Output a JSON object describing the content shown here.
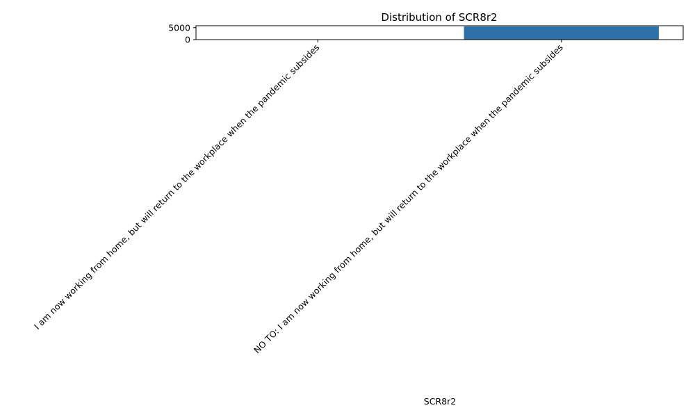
{
  "chart_data": {
    "type": "bar",
    "title": "Distribution of SCR8r2",
    "xlabel": "SCR8r2",
    "ylabel": "",
    "categories": [
      "I am now working from home, but will return to the workplace when the pandemic subsides",
      "NO TO: I am now working from home, but will return to the workplace when the pandemic subsides"
    ],
    "values": [
      0,
      5500
    ],
    "yticks": [
      0,
      5000
    ],
    "ylim": [
      0,
      5800
    ],
    "grid": false,
    "legend": "none",
    "bar_color": "#2e71a8"
  }
}
